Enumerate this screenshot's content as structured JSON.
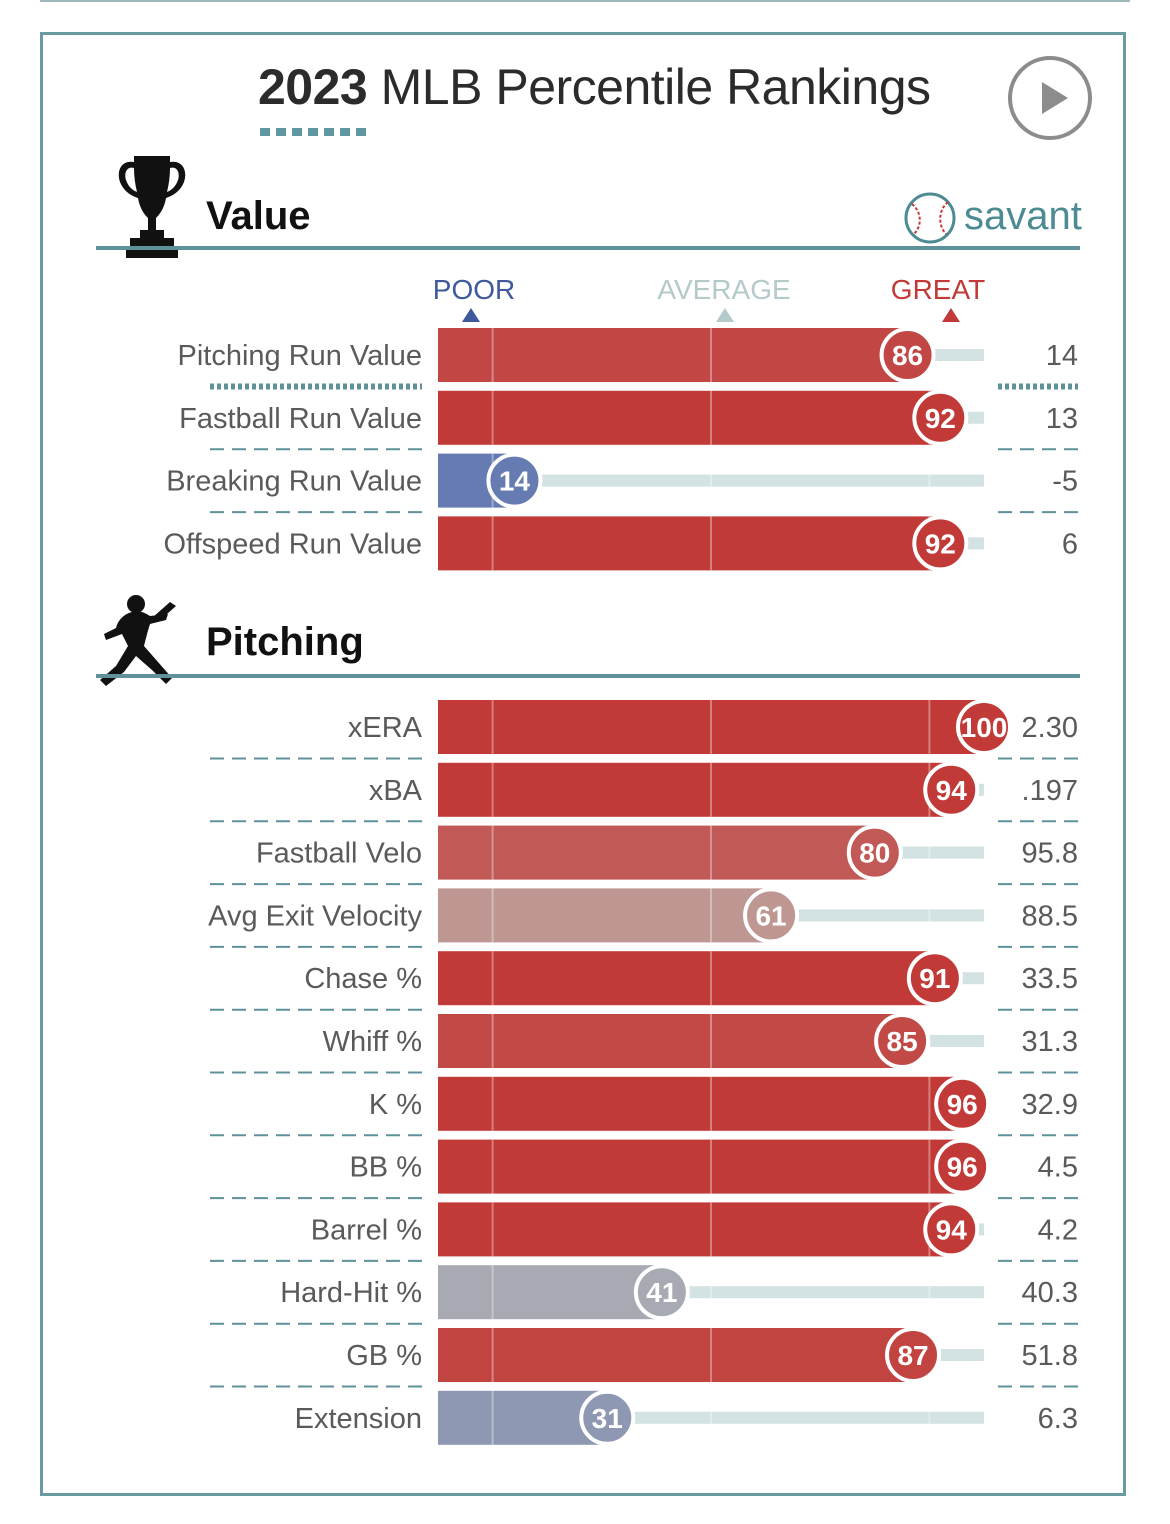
{
  "title": {
    "year": "2023",
    "rest": "MLB Percentile Rankings"
  },
  "brand": "savant",
  "scale": {
    "poor": "POOR",
    "average": "AVERAGE",
    "great": "GREAT"
  },
  "colors": {
    "great": "#c23a37",
    "poor": "#5b74b1",
    "average": "#bdb9b4",
    "track": "#d3e2e2",
    "accent": "#5f919a"
  },
  "sections": [
    {
      "heading": "Value",
      "icon": "trophy-icon"
    },
    {
      "heading": "Pitching",
      "icon": "pitcher-silhouette-icon"
    }
  ],
  "chart_data": {
    "type": "bar",
    "xlim": [
      0,
      100
    ],
    "groups": [
      {
        "name": "Value",
        "metrics": [
          {
            "label": "Pitching Run Value",
            "percentile": 86,
            "value": "14"
          },
          {
            "label": "Fastball Run Value",
            "percentile": 92,
            "value": "13"
          },
          {
            "label": "Breaking Run Value",
            "percentile": 14,
            "value": "-5"
          },
          {
            "label": "Offspeed Run Value",
            "percentile": 92,
            "value": "6"
          }
        ]
      },
      {
        "name": "Pitching",
        "metrics": [
          {
            "label": "xERA",
            "percentile": 100,
            "value": "2.30"
          },
          {
            "label": "xBA",
            "percentile": 94,
            "value": ".197"
          },
          {
            "label": "Fastball Velo",
            "percentile": 80,
            "value": "95.8"
          },
          {
            "label": "Avg Exit Velocity",
            "percentile": 61,
            "value": "88.5"
          },
          {
            "label": "Chase %",
            "percentile": 91,
            "value": "33.5"
          },
          {
            "label": "Whiff %",
            "percentile": 85,
            "value": "31.3"
          },
          {
            "label": "K %",
            "percentile": 96,
            "value": "32.9"
          },
          {
            "label": "BB %",
            "percentile": 96,
            "value": "4.5"
          },
          {
            "label": "Barrel %",
            "percentile": 94,
            "value": "4.2"
          },
          {
            "label": "Hard-Hit %",
            "percentile": 41,
            "value": "40.3"
          },
          {
            "label": "GB %",
            "percentile": 87,
            "value": "51.8"
          },
          {
            "label": "Extension",
            "percentile": 31,
            "value": "6.3"
          }
        ]
      }
    ]
  }
}
